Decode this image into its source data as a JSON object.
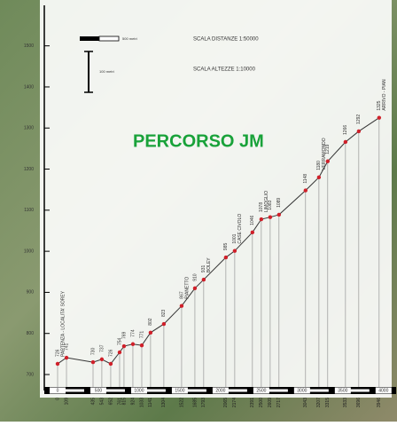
{
  "chart_data": {
    "type": "line",
    "title": "PERCORSO JM",
    "scale_distance_label": "SCALA DISTANZE 1:50000",
    "scale_height_label": "SCALA ALTEZZE 1:10000",
    "scale_distance_unit": "500 metri",
    "scale_height_unit": "100 metri",
    "x": [
      0,
      109,
      435,
      543,
      652,
      761,
      815,
      924,
      1033,
      1141,
      1304,
      1522,
      1685,
      1793,
      2065,
      2174,
      2391,
      2500,
      2609,
      2717,
      3043,
      3207,
      3315,
      3533,
      3696,
      3946
    ],
    "values": [
      726,
      741,
      730,
      737,
      726,
      754,
      769,
      774,
      771,
      802,
      823,
      867,
      910,
      931,
      985,
      1001,
      1046,
      1078,
      1083,
      1089,
      1148,
      1180,
      1219,
      1266,
      1292,
      1325
    ],
    "place_labels": [
      "PARTENZA - LOCALITA' SOREY",
      null,
      null,
      null,
      null,
      null,
      null,
      null,
      null,
      null,
      null,
      "PIANETTO",
      null,
      "BOLEY",
      null,
      "CASE CIVOLO",
      null,
      "LIMOGLIO",
      null,
      null,
      null,
      "VERRAMONDO",
      null,
      null,
      null,
      "ARRIVO - PIAN"
    ],
    "color": "#d0202a",
    "xlim": [
      0,
      4100
    ],
    "xticks": [
      0,
      500,
      1000,
      1500,
      2000,
      2500,
      3000,
      3500,
      4000
    ],
    "ylim": [
      700,
      1590
    ],
    "yticks": [
      700,
      800,
      900,
      1000,
      1100,
      1200,
      1300,
      1400,
      1500
    ]
  }
}
